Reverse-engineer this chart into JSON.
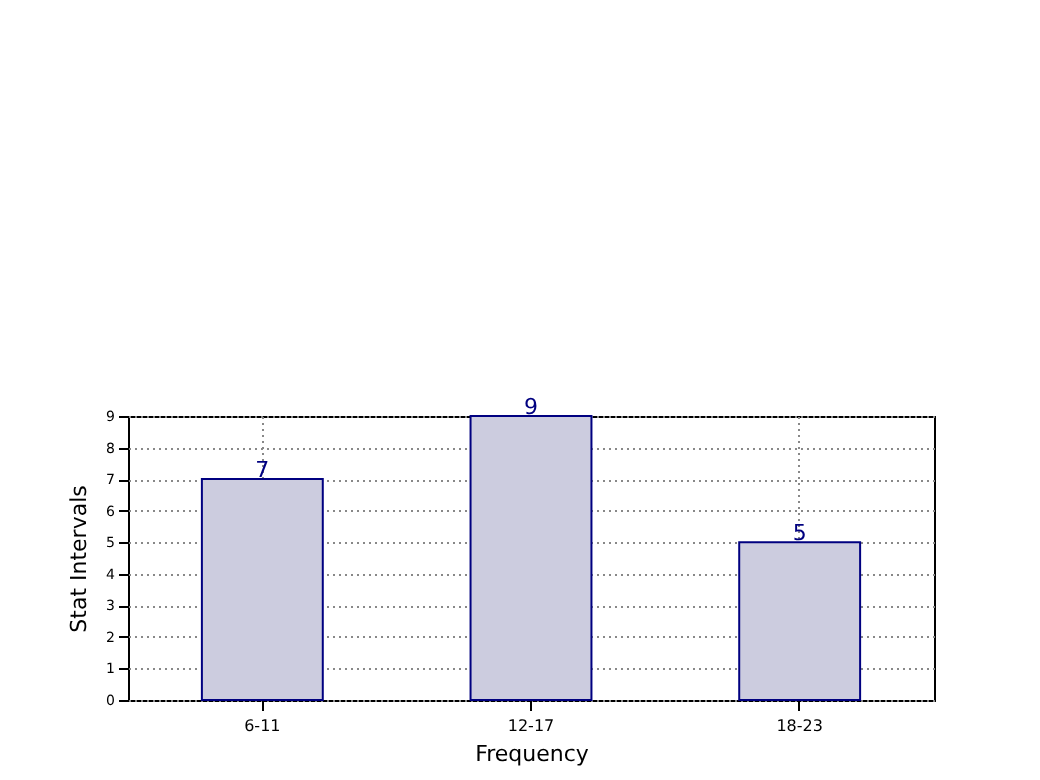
{
  "chart_data": {
    "type": "bar",
    "xlabel": "Frequency",
    "ylabel": "Stat Intervals",
    "categories": [
      "6-11",
      "12-17",
      "18-23"
    ],
    "values": [
      7,
      9,
      5
    ],
    "color": "#ccccdf",
    "ylim": [
      0,
      9
    ],
    "yticks": [
      0,
      1,
      2,
      3,
      4,
      5,
      6,
      7,
      8,
      9
    ],
    "grid": true,
    "data_labels": true
  }
}
